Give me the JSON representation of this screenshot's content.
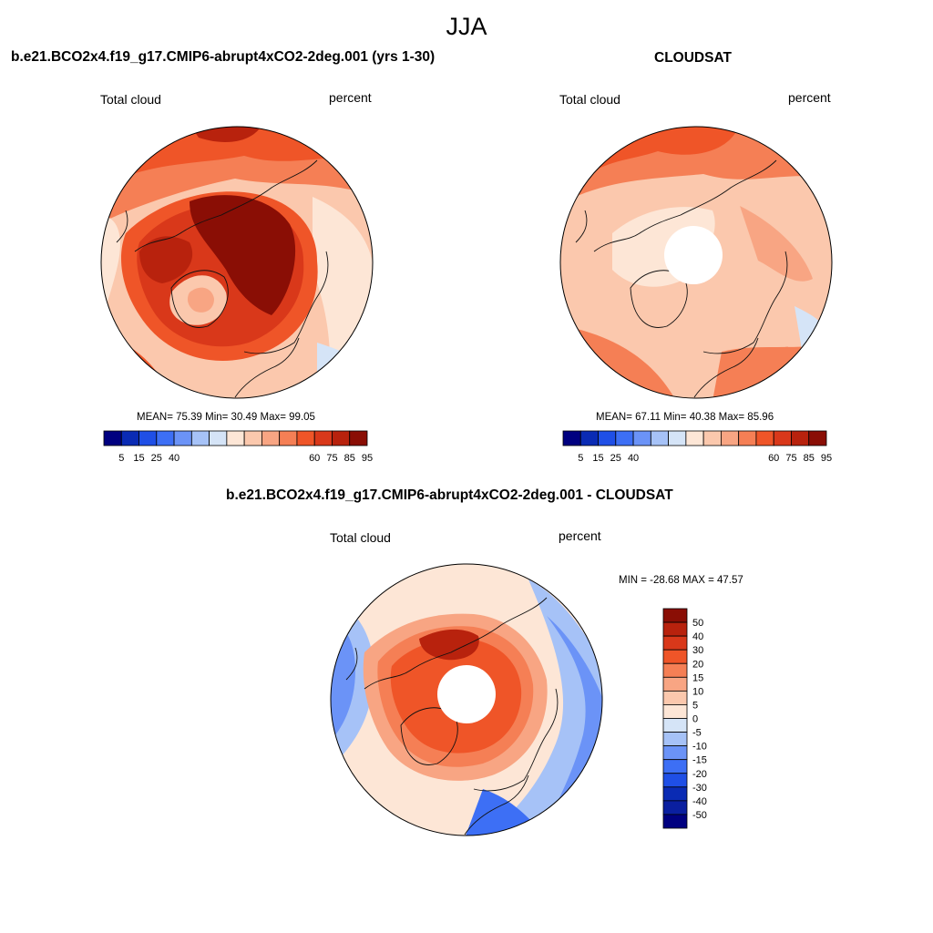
{
  "figure": {
    "season": "JJA",
    "units": "percent",
    "variable": "Total cloud"
  },
  "panels": {
    "model": {
      "title": "b.e21.BCO2x4.f19_g17.CMIP6-abrupt4xCO2-2deg.001 (yrs 1-30)",
      "left_label": "Total cloud",
      "right_label": "percent",
      "stats": "MEAN=  75.39  Min=  30.49  Max=  99.05"
    },
    "obs": {
      "title": "CLOUDSAT",
      "left_label": "Total cloud",
      "right_label": "percent",
      "stats": "MEAN=  67.11  Min=  40.38  Max=  85.96"
    },
    "diff": {
      "title": "b.e21.BCO2x4.f19_g17.CMIP6-abrupt4xCO2-2deg.001 - CLOUDSAT",
      "left_label": "Total cloud",
      "right_label": "percent",
      "stats": "MIN = -28.68 MAX =  47.57"
    }
  },
  "colorbars": {
    "abs_ticks": [
      "5",
      "15",
      "25",
      "40",
      "60",
      "75",
      "85",
      "95"
    ],
    "abs_colors": [
      "#000080",
      "#0a2bb4",
      "#1f4fe6",
      "#3d6ff5",
      "#6b93f7",
      "#a6c2f7",
      "#d5e4f7",
      "#fde6d6",
      "#fbc8ad",
      "#f8a583",
      "#f57f55",
      "#ef5528",
      "#d9381a",
      "#b8220d",
      "#8a0e05"
    ],
    "diff_ticks": [
      "50",
      "40",
      "30",
      "20",
      "15",
      "10",
      "5",
      "0",
      "-5",
      "-10",
      "-15",
      "-20",
      "-30",
      "-40",
      "-50"
    ],
    "diff_colors": [
      "#8a0e05",
      "#b8220d",
      "#d9381a",
      "#ef5528",
      "#f57f55",
      "#f8a583",
      "#fbc8ad",
      "#fde6d6",
      "#d5e4f7",
      "#a6c2f7",
      "#6b93f7",
      "#3d6ff5",
      "#1f4fe6",
      "#0a2bb4",
      "#0a1fa0",
      "#000080"
    ]
  }
}
